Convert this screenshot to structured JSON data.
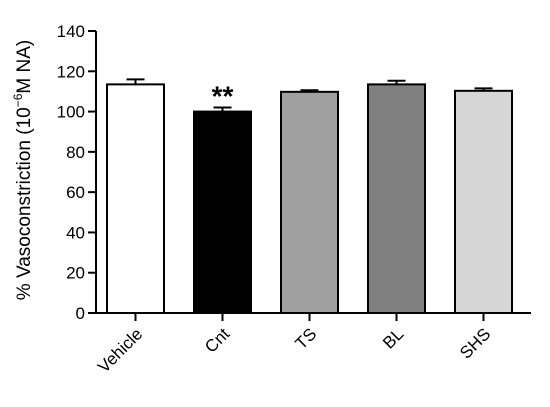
{
  "chart_data": {
    "type": "bar",
    "categories": [
      "Vehicle",
      "Cnt",
      "TS",
      "BL",
      "SHS"
    ],
    "values": [
      113.5,
      100.0,
      109.8,
      113.5,
      110.3
    ],
    "errors": [
      2.5,
      2.0,
      0.8,
      1.8,
      1.2
    ],
    "colors": [
      "#ffffff",
      "#000000",
      "#a0a0a0",
      "#808080",
      "#d6d6d6"
    ],
    "annotations": [
      {
        "category": "Cnt",
        "text": "**"
      }
    ],
    "ylabel_prefix": "% Vasoconstriction (10",
    "ylabel_exponent": "−6",
    "ylabel_suffix": "M NA)",
    "xlabel": "",
    "title": "",
    "ylim": [
      0,
      140
    ],
    "yticks": [
      0,
      20,
      40,
      60,
      80,
      100,
      120,
      140
    ],
    "grid": false,
    "legend": false
  }
}
